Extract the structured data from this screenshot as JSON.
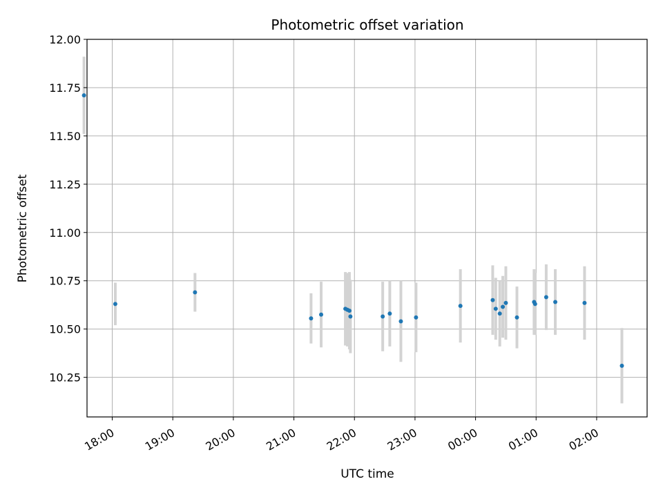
{
  "chart_data": {
    "type": "scatter",
    "title": "Photometric offset variation",
    "xlabel": "UTC time",
    "ylabel": "Photometric offset",
    "ylim": [
      10.045,
      12.0
    ],
    "xlim": [
      "17:35",
      "02:50"
    ],
    "grid": true,
    "yticks": [
      "10.25",
      "10.50",
      "10.75",
      "11.00",
      "11.25",
      "11.50",
      "11.75",
      "12.00"
    ],
    "xticks": [
      "18:00",
      "19:00",
      "20:00",
      "21:00",
      "22:00",
      "23:00",
      "00:00",
      "01:00",
      "02:00"
    ],
    "marker_color": "#1f77b4",
    "errorbar_color": "#d3d3d3",
    "points": [
      {
        "t": "17:32",
        "y": 11.71,
        "err": 0.2
      },
      {
        "t": "18:03",
        "y": 10.63,
        "err": 0.11
      },
      {
        "t": "19:22",
        "y": 10.69,
        "err": 0.1
      },
      {
        "t": "21:17",
        "y": 10.555,
        "err": 0.13
      },
      {
        "t": "21:27",
        "y": 10.575,
        "err": 0.17
      },
      {
        "t": "21:51",
        "y": 10.605,
        "err": 0.19
      },
      {
        "t": "21:53",
        "y": 10.6,
        "err": 0.19
      },
      {
        "t": "21:55",
        "y": 10.595,
        "err": 0.2
      },
      {
        "t": "21:56",
        "y": 10.565,
        "err": 0.19
      },
      {
        "t": "22:28",
        "y": 10.565,
        "err": 0.18
      },
      {
        "t": "22:35",
        "y": 10.58,
        "err": 0.17
      },
      {
        "t": "22:46",
        "y": 10.54,
        "err": 0.21
      },
      {
        "t": "23:01",
        "y": 10.56,
        "err": 0.18
      },
      {
        "t": "23:45",
        "y": 10.62,
        "err": 0.19
      },
      {
        "t": "00:17",
        "y": 10.65,
        "err": 0.18
      },
      {
        "t": "00:20",
        "y": 10.605,
        "err": 0.16
      },
      {
        "t": "00:24",
        "y": 10.58,
        "err": 0.17
      },
      {
        "t": "00:27",
        "y": 10.615,
        "err": 0.16
      },
      {
        "t": "00:30",
        "y": 10.635,
        "err": 0.19
      },
      {
        "t": "00:41",
        "y": 10.56,
        "err": 0.16
      },
      {
        "t": "00:58",
        "y": 10.64,
        "err": 0.17
      },
      {
        "t": "00:59",
        "y": 10.63,
        "err": 0.16
      },
      {
        "t": "01:10",
        "y": 10.665,
        "err": 0.17
      },
      {
        "t": "01:19",
        "y": 10.64,
        "err": 0.17
      },
      {
        "t": "01:48",
        "y": 10.635,
        "err": 0.19
      },
      {
        "t": "02:25",
        "y": 10.31,
        "err": 0.195
      }
    ]
  }
}
